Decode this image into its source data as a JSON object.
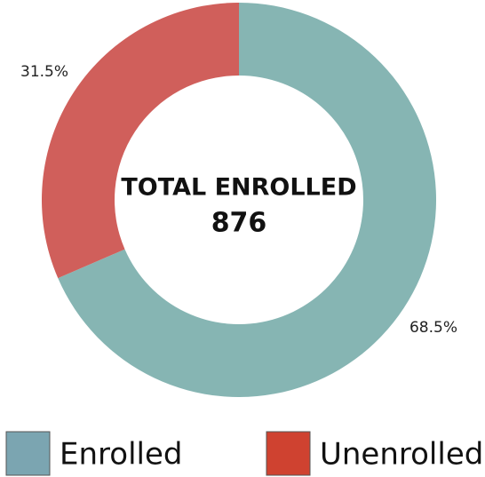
{
  "chart_data": {
    "type": "donut",
    "center_title": "TOTAL ENROLLED",
    "center_value": 876,
    "categories": [
      "Enrolled",
      "Unenrolled"
    ],
    "values": [
      68.5,
      31.5
    ],
    "value_labels": [
      "68.5%",
      "31.5%"
    ],
    "colors": [
      "#86b5b3",
      "#d05f5b"
    ],
    "legend_colors": [
      "#7ba5b1",
      "#cf4230"
    ]
  }
}
